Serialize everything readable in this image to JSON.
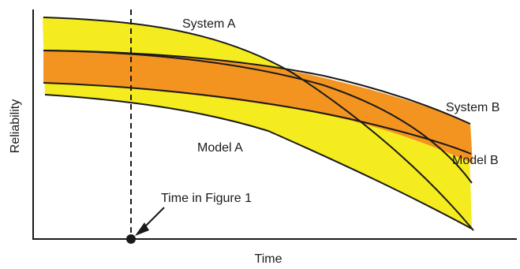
{
  "diagram": {
    "axes": {
      "y_label": "Reliability",
      "x_label": "Time"
    },
    "bands": [
      {
        "name": "System A",
        "color": "#f4ec1f"
      },
      {
        "name": "System B",
        "color": "#f39420"
      }
    ],
    "curves": [
      {
        "name": "Model A"
      },
      {
        "name": "Model B"
      }
    ],
    "labels": {
      "system_a": "System A",
      "system_b": "System B",
      "model_a": "Model A",
      "model_b": "Model B",
      "marker": "Time in Figure 1"
    },
    "colors": {
      "axis": "#1a1a1a",
      "curve": "#1a1a1a",
      "band_a": "#f4ec1f",
      "band_b": "#f39420"
    }
  }
}
